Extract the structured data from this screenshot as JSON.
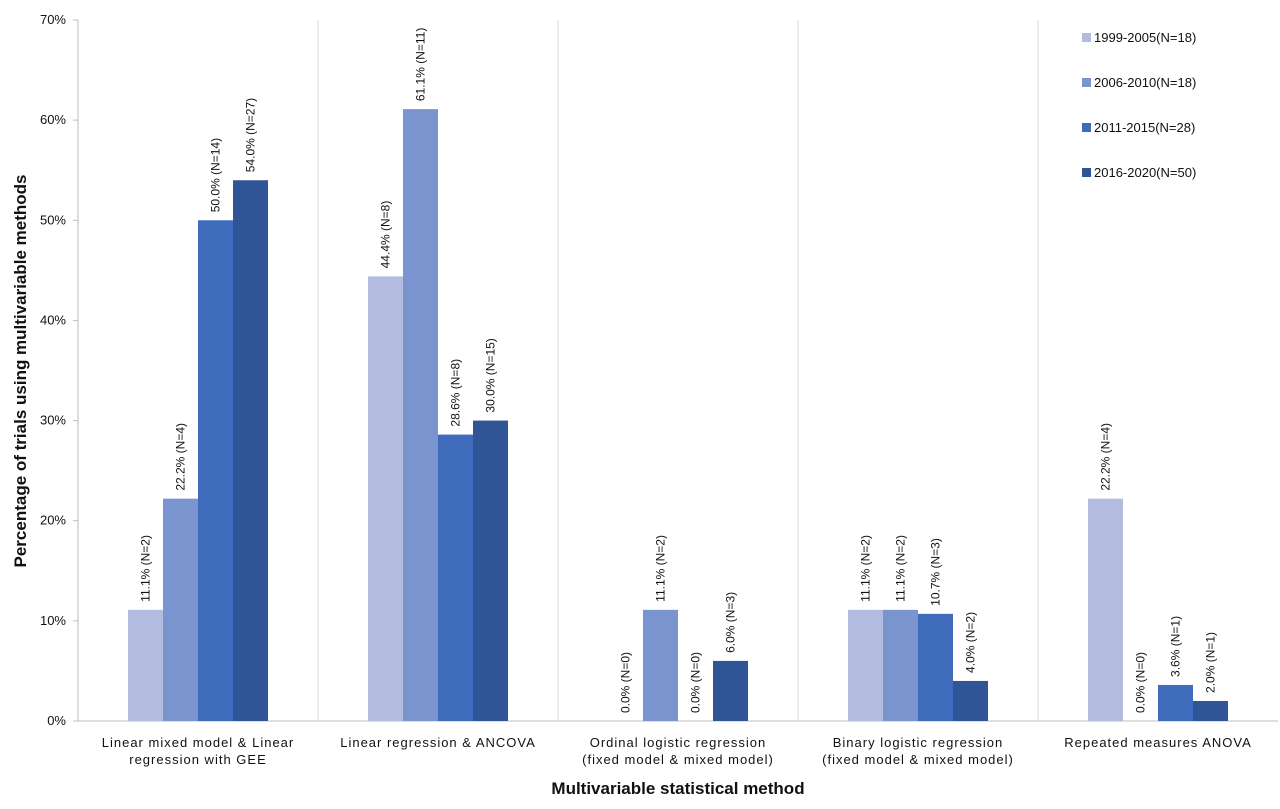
{
  "chart_data": {
    "type": "bar",
    "title": "",
    "xlabel": "Multivariable statistical method",
    "ylabel": "Percentage of trials using multivariable  methods",
    "ylim": [
      0,
      70
    ],
    "y_ticks": [
      "0%",
      "10%",
      "20%",
      "30%",
      "40%",
      "50%",
      "60%",
      "70%"
    ],
    "grid": false,
    "legend_position": "top-right",
    "categories": [
      [
        "Linear mixed model & Linear",
        "regression with GEE"
      ],
      [
        "Linear regression & ANCOVA"
      ],
      [
        "Ordinal logistic regression",
        "(fixed model & mixed model)"
      ],
      [
        "Binary logistic regression",
        "(fixed model & mixed model)"
      ],
      [
        "Repeated measures ANOVA"
      ]
    ],
    "series": [
      {
        "name": "1999-2005(N=18)",
        "color": "#b3bcdf",
        "values": [
          11.1,
          44.4,
          0.0,
          11.1,
          22.2
        ],
        "labels": [
          "11.1% (N=2)",
          "44.4% (N=8)",
          "0.0% (N=0)",
          "11.1% (N=2)",
          "22.2% (N=4)"
        ]
      },
      {
        "name": "2006-2010(N=18)",
        "color": "#7a94d0",
        "values": [
          22.2,
          61.1,
          11.1,
          11.1,
          0.0
        ],
        "labels": [
          "22.2% (N=4)",
          "61.1% (N=11)",
          "11.1% (N=2)",
          "11.1% (N=2)",
          "0.0% (N=0)"
        ]
      },
      {
        "name": "2011-2015(N=28)",
        "color": "#3f6bbd",
        "values": [
          50.0,
          28.6,
          0.0,
          10.7,
          3.6
        ],
        "labels": [
          "50.0% (N=14)",
          "28.6% (N=8)",
          "0.0% (N=0)",
          "10.7% (N=3)",
          "3.6% (N=1)"
        ]
      },
      {
        "name": "2016-2020(N=50)",
        "color": "#2f5597",
        "values": [
          54.0,
          30.0,
          6.0,
          4.0,
          2.0
        ],
        "labels": [
          "54.0% (N=27)",
          "30.0% (N=15)",
          "6.0% (N=3)",
          "4.0% (N=2)",
          "2.0% (N=1)"
        ]
      }
    ]
  }
}
